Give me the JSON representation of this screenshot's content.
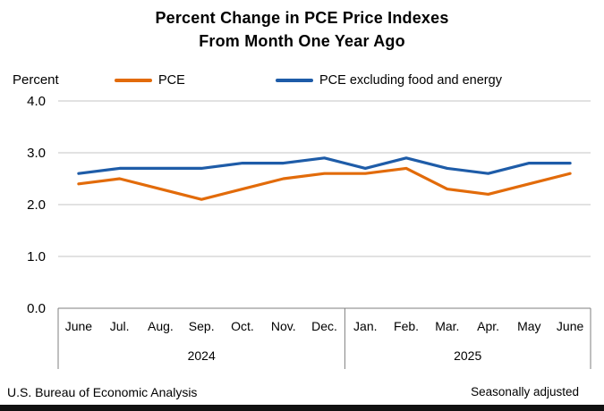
{
  "title": {
    "line1": "Percent Change in PCE Price Indexes",
    "line2": "From Month One Year Ago"
  },
  "axis_label": "Percent",
  "footer": {
    "left": "U.S. Bureau of Economic Analysis",
    "right": "Seasonally adjusted"
  },
  "colors": {
    "grid": "#c6c6c6",
    "axis": "#7f7f7f",
    "text": "#000000"
  },
  "chart_data": {
    "type": "line",
    "title": "Percent Change in PCE Price Indexes From Month One Year Ago",
    "xlabel": "",
    "ylabel": "Percent",
    "ylim": [
      0,
      4
    ],
    "yticks": [
      0,
      1,
      2,
      3,
      4
    ],
    "grid": true,
    "legend_position": "top",
    "categories": [
      "June",
      "Jul.",
      "Aug.",
      "Sep.",
      "Oct.",
      "Nov.",
      "Dec.",
      "Jan.",
      "Feb.",
      "Mar.",
      "Apr.",
      "May",
      "June"
    ],
    "year_groups": [
      {
        "label": "2024",
        "start": 0,
        "end": 7
      },
      {
        "label": "2025",
        "start": 7,
        "end": 13
      }
    ],
    "series": [
      {
        "name": "PCE",
        "color": "#E26B0A",
        "values": [
          2.4,
          2.5,
          2.3,
          2.1,
          2.3,
          2.5,
          2.6,
          2.6,
          2.7,
          2.3,
          2.2,
          2.4,
          2.6
        ]
      },
      {
        "name": "PCE excluding food and energy",
        "color": "#1E5CA8",
        "values": [
          2.6,
          2.7,
          2.7,
          2.7,
          2.8,
          2.8,
          2.9,
          2.7,
          2.9,
          2.7,
          2.6,
          2.8,
          2.8
        ]
      }
    ]
  }
}
